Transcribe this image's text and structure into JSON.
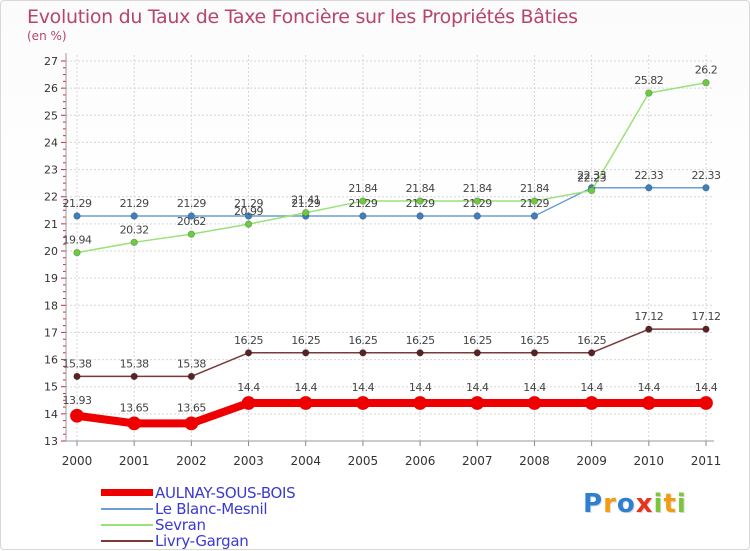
{
  "chart_data": {
    "type": "line",
    "title": "Evolution du Taux de Taxe Foncière sur les Propriétés Bâties",
    "ylabel": "(en %)",
    "xlabel": "",
    "x": [
      "2000",
      "2001",
      "2002",
      "2003",
      "2004",
      "2005",
      "2006",
      "2007",
      "2008",
      "2009",
      "2010",
      "2011"
    ],
    "ylim": [
      13,
      27
    ],
    "yticks": [
      "13",
      "14",
      "15",
      "16",
      "17",
      "18",
      "19",
      "20",
      "21",
      "22",
      "23",
      "24",
      "25",
      "26",
      "27"
    ],
    "grid": true,
    "legend_position": "bottom-left",
    "series": [
      {
        "name": "AULNAY-SOUS-BOIS",
        "color": "#ee0000",
        "marker": "#ee0000",
        "emphasis": true,
        "values": [
          13.93,
          13.65,
          13.65,
          14.4,
          14.4,
          14.4,
          14.4,
          14.4,
          14.4,
          14.4,
          14.4,
          14.4
        ],
        "labels": [
          "13.93",
          "13.65",
          "13.65",
          "14.4",
          "14.4",
          "14.4",
          "14.4",
          "14.4",
          "14.4",
          "14.4",
          "14.4",
          "14.4"
        ]
      },
      {
        "name": "Le Blanc-Mesnil",
        "color": "#6a9fd4",
        "marker": "#3f7fc0",
        "emphasis": false,
        "values": [
          21.29,
          21.29,
          21.29,
          21.29,
          21.29,
          21.29,
          21.29,
          21.29,
          21.29,
          22.33,
          22.33,
          22.33
        ],
        "labels": [
          "21.29",
          "21.29",
          "21.29",
          "21.29",
          "21.29",
          "21.29",
          "21.29",
          "21.29",
          "21.29",
          "22.33",
          "22.33",
          "22.33"
        ]
      },
      {
        "name": "Sevran",
        "color": "#99e27a",
        "marker": "#6ccc3f",
        "emphasis": false,
        "values": [
          19.94,
          20.32,
          20.62,
          20.99,
          21.41,
          21.84,
          21.84,
          21.84,
          21.84,
          22.23,
          25.82,
          26.2
        ],
        "labels": [
          "19.94",
          "20.32",
          "20.62",
          "20.99",
          "21.41",
          "21.84",
          "21.84",
          "21.84",
          "21.84",
          "22.23",
          "25.82",
          "26.2"
        ]
      },
      {
        "name": "Livry-Gargan",
        "color": "#7a3a3a",
        "marker": "#5a2222",
        "emphasis": false,
        "values": [
          15.38,
          15.38,
          15.38,
          16.25,
          16.25,
          16.25,
          16.25,
          16.25,
          16.25,
          16.25,
          17.12,
          17.12
        ],
        "labels": [
          "15.38",
          "15.38",
          "15.38",
          "16.25",
          "16.25",
          "16.25",
          "16.25",
          "16.25",
          "16.25",
          "16.25",
          "17.12",
          "17.12"
        ]
      }
    ]
  },
  "logo": {
    "letters": [
      "P",
      "r",
      "o",
      "x",
      "i",
      "t",
      "i"
    ],
    "colors": [
      "#2e7fd0",
      "#f39c12",
      "#2e7fd0",
      "#e8341c",
      "#7cc43a",
      "#f39c12",
      "#7cc43a"
    ]
  }
}
